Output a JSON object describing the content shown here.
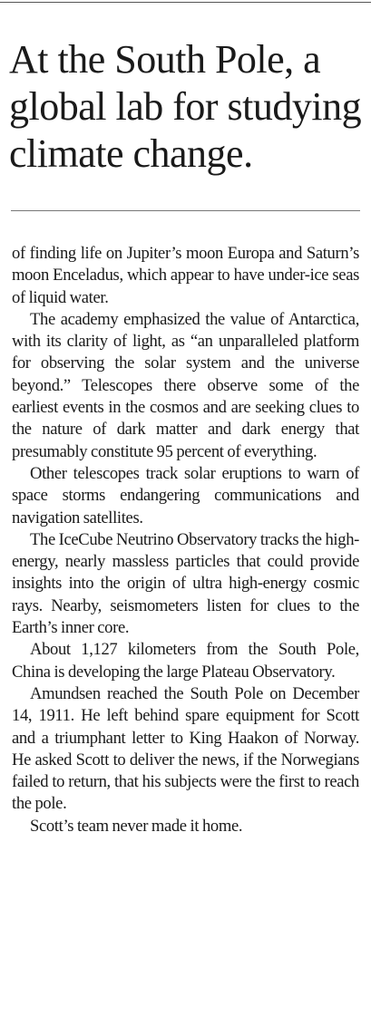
{
  "headline": "At the South Pole, a global lab for studying climate change.",
  "paragraphs": [
    "of finding life on Jupiter’s moon Europa and Saturn’s moon Enceladus, which appear to have under-ice seas of liquid water.",
    "The academy emphasized the value of Antarctica, with its clarity of light, as “an unparalleled platform for observing the so­lar system and the universe beyond.” Tele­scopes there observe some of the earliest events in the cosmos and are seeking clues to the nature of dark matter and dark energy that presumably constitute 95 percent of ev­erything.",
    "Other telescopes track solar eruptions to warn of space storms endangering commu­nications and navigation satellites.",
    "The IceCube Neutrino Observatory tracks the high-energy, nearly massless particles that could provide insights into the origin of ultra high-energy cosmic rays. Nearby, seismometers listen for clues to the Earth’s inner core.",
    "About 1,127 kilometers from the South Pole, China is developing the large Plateau Observatory.",
    "Amundsen reached the South Pole on December 14, 1911. He left behind spare equipment for Scott and a triumphant let­ter to King Haakon of Norway. He asked Scott to deliver the news, if the Norwegians failed to return, that his subjects were the first to reach the pole.",
    "Scott’s team never made it home."
  ]
}
